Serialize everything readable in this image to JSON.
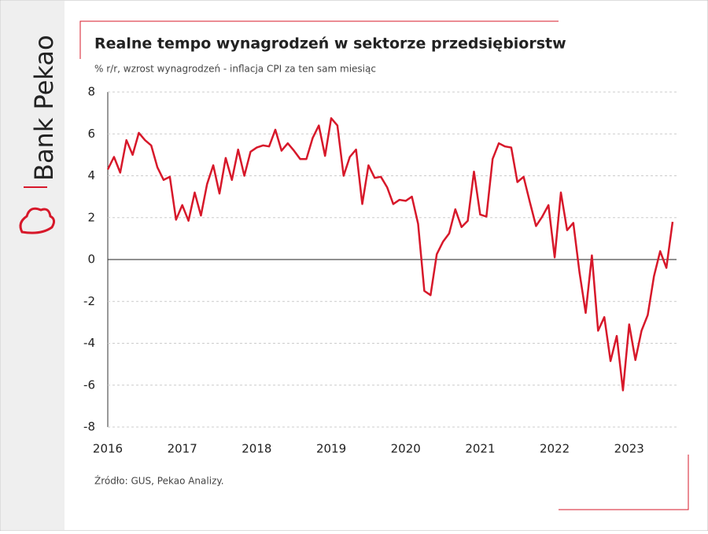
{
  "brand": "Bank Pekao",
  "chart_data": {
    "type": "line",
    "title": "Realne tempo wynagrodzeń w sektorze przedsiębiorstw",
    "subtitle": "% r/r, wzrost wynagrodzeń  - inflacja CPI za ten sam miesiąc",
    "source": "Źródło: GUS, Pekao Analizy.",
    "categories": [
      "2016",
      null,
      null,
      null,
      null,
      null,
      null,
      null,
      null,
      null,
      null,
      null,
      "2017",
      null,
      null,
      null,
      null,
      null,
      null,
      null,
      null,
      null,
      null,
      null,
      "2018",
      null,
      null,
      null,
      null,
      null,
      null,
      null,
      null,
      null,
      null,
      null,
      "2019",
      null,
      null,
      null,
      null,
      null,
      null,
      null,
      null,
      null,
      null,
      null,
      "2020",
      null,
      null,
      null,
      null,
      null,
      null,
      null,
      null,
      null,
      null,
      null,
      "2021",
      null,
      null,
      null,
      null,
      null,
      null,
      null,
      null,
      null,
      null,
      null,
      "2022",
      null,
      null,
      null,
      null,
      null,
      null,
      null,
      null,
      null,
      null,
      null,
      "2023",
      null,
      null,
      null,
      null,
      null,
      null,
      null
    ],
    "series": [
      {
        "color": "#d7182a",
        "values": [
          4.3,
          4.9,
          4.15,
          5.7,
          5.0,
          6.05,
          5.7,
          5.45,
          4.4,
          3.8,
          3.95,
          1.9,
          2.6,
          1.85,
          3.2,
          2.1,
          3.6,
          4.5,
          3.15,
          4.85,
          3.8,
          5.25,
          4.0,
          5.15,
          5.35,
          5.45,
          5.4,
          6.2,
          5.2,
          5.55,
          5.2,
          4.8,
          4.8,
          5.8,
          6.4,
          4.95,
          6.75,
          6.4,
          4.0,
          4.9,
          5.25,
          2.65,
          4.5,
          3.9,
          3.95,
          3.45,
          2.65,
          2.85,
          2.8,
          3.0,
          1.7,
          -1.5,
          -1.7,
          0.25,
          0.85,
          1.25,
          2.4,
          1.55,
          1.85,
          4.2,
          2.15,
          2.05,
          4.8,
          5.55,
          5.4,
          5.35,
          3.7,
          3.95,
          2.75,
          1.6,
          2.05,
          2.6,
          0.1,
          3.2,
          1.4,
          1.75,
          -0.6,
          -2.55,
          0.2,
          -3.4,
          -2.75,
          -4.85,
          -3.65,
          -6.25,
          -3.1,
          -4.8,
          -3.4,
          -2.65,
          -0.8,
          0.4,
          -0.4,
          1.8
        ]
      }
    ],
    "ylim": [
      -8,
      8
    ],
    "yticks": [
      -8,
      -6,
      -4,
      -2,
      0,
      2,
      4,
      6,
      8
    ],
    "grid": true
  }
}
